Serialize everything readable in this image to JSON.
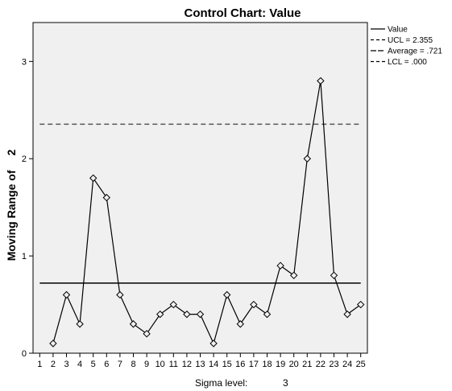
{
  "chart_data": {
    "type": "line",
    "title": "Control Chart: Value",
    "ylabel": "Moving Range of",
    "ylabel_span": "2",
    "ylim": [
      0,
      3.4
    ],
    "y_ticks": [
      0,
      1,
      2,
      3
    ],
    "grid": false,
    "legend_position": "top-right",
    "x": [
      1,
      2,
      3,
      4,
      5,
      6,
      7,
      8,
      9,
      10,
      11,
      12,
      13,
      14,
      15,
      16,
      17,
      18,
      19,
      20,
      21,
      22,
      23,
      24,
      25
    ],
    "series": [
      {
        "name": "Value",
        "values": [
          null,
          0.1,
          0.6,
          0.3,
          1.8,
          1.6,
          0.6,
          0.3,
          0.2,
          0.4,
          0.5,
          0.4,
          0.4,
          0.1,
          0.6,
          0.3,
          0.5,
          0.4,
          0.9,
          0.8,
          2.0,
          2.8,
          0.8,
          0.4,
          0.5
        ]
      }
    ],
    "control_lines": {
      "ucl": 2.355,
      "average": 0.721,
      "lcl": 0.0
    },
    "legend": [
      {
        "label": "Value",
        "style": "solid"
      },
      {
        "label": "UCL = 2.355",
        "style": "dashed"
      },
      {
        "label": "Average = .721",
        "style": "long-dash"
      },
      {
        "label": "LCL = .000",
        "style": "dashed"
      }
    ],
    "sigma_label": "Sigma level:",
    "sigma_value": "3",
    "colors": {
      "plot_background": "#f0f0f0",
      "line": "#000000",
      "control": "#555555"
    }
  }
}
